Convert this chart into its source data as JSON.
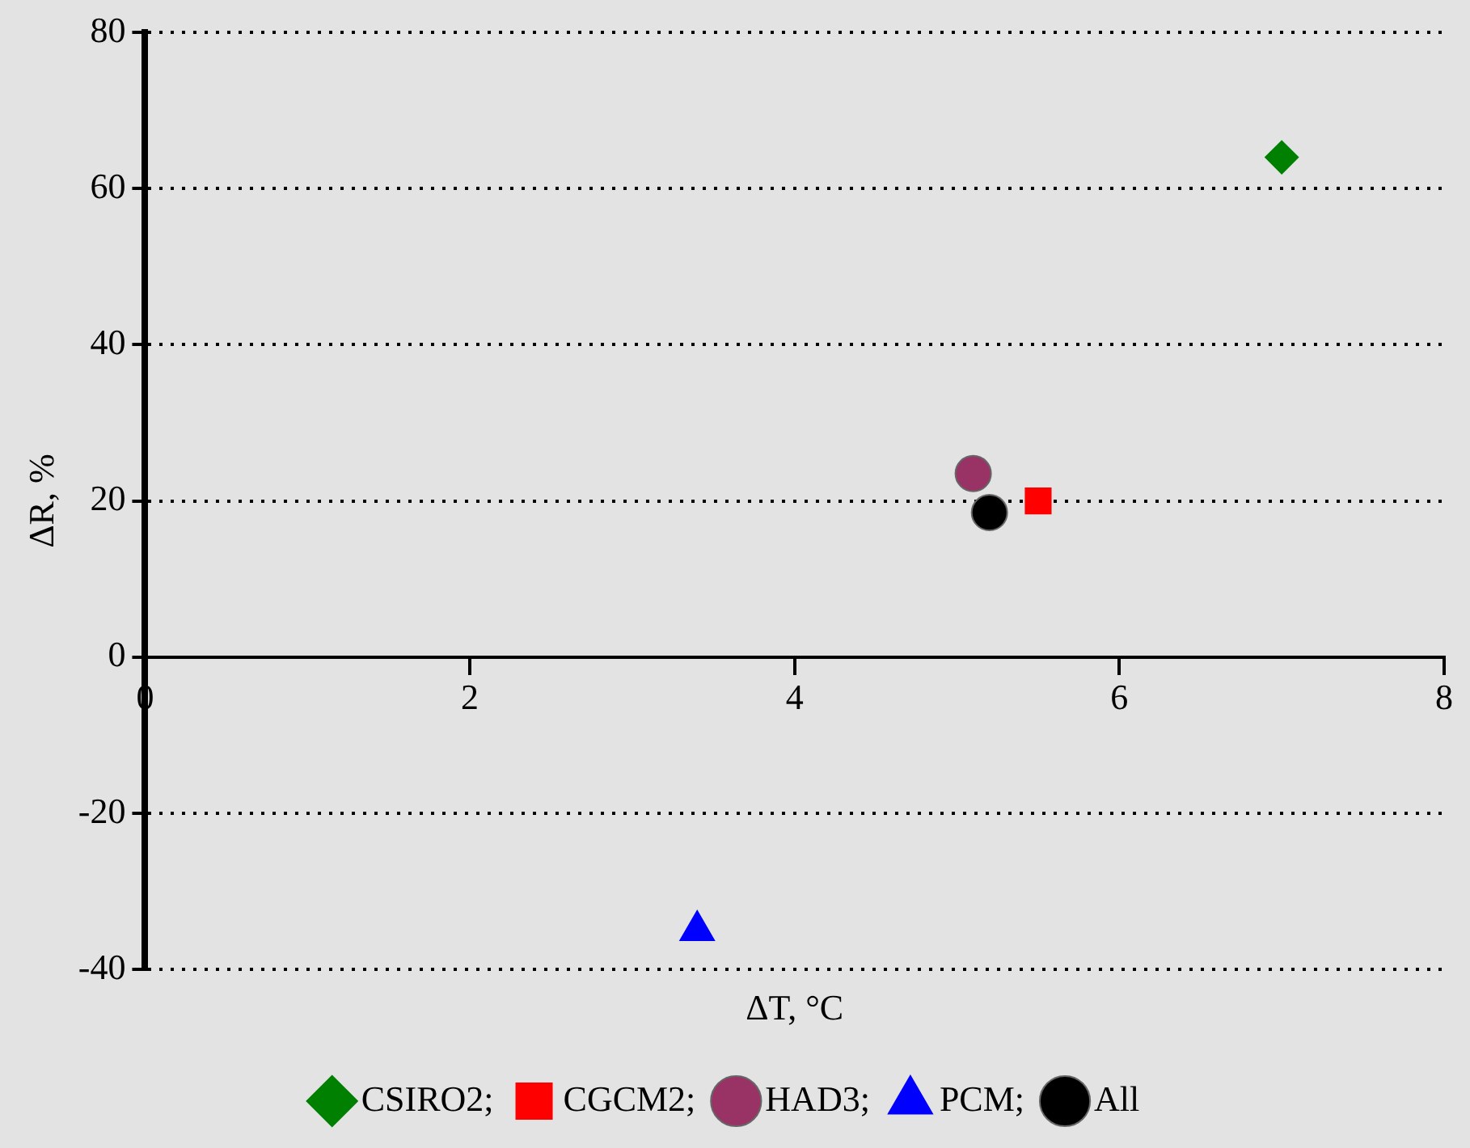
{
  "chart_data": {
    "type": "scatter",
    "xlabel": "ΔT, °C",
    "ylabel": "ΔR, %",
    "xlim": [
      0,
      8
    ],
    "xticks": [
      0,
      2,
      4,
      6,
      8
    ],
    "ylim": [
      -40,
      80
    ],
    "yticks": [
      -40,
      -20,
      0,
      20,
      40,
      60,
      80
    ],
    "grid": "y",
    "legend": "bottom",
    "series": [
      {
        "name": "CSIRO2;",
        "color": "#008000",
        "marker": "diamond",
        "x": [
          7.0
        ],
        "values": [
          64
        ]
      },
      {
        "name": "CGCM2;",
        "color": "#ff0000",
        "marker": "square",
        "x": [
          5.5
        ],
        "values": [
          20
        ]
      },
      {
        "name": "HAD3;",
        "color": "#993366",
        "marker": "circle",
        "x": [
          5.1
        ],
        "values": [
          23.5
        ]
      },
      {
        "name": "PCM;",
        "color": "#0000ff",
        "marker": "triangle",
        "x": [
          3.4
        ],
        "values": [
          -35
        ]
      },
      {
        "name": "All",
        "color": "#000000",
        "marker": "circle",
        "x": [
          5.2
        ],
        "values": [
          18.5
        ]
      }
    ]
  }
}
